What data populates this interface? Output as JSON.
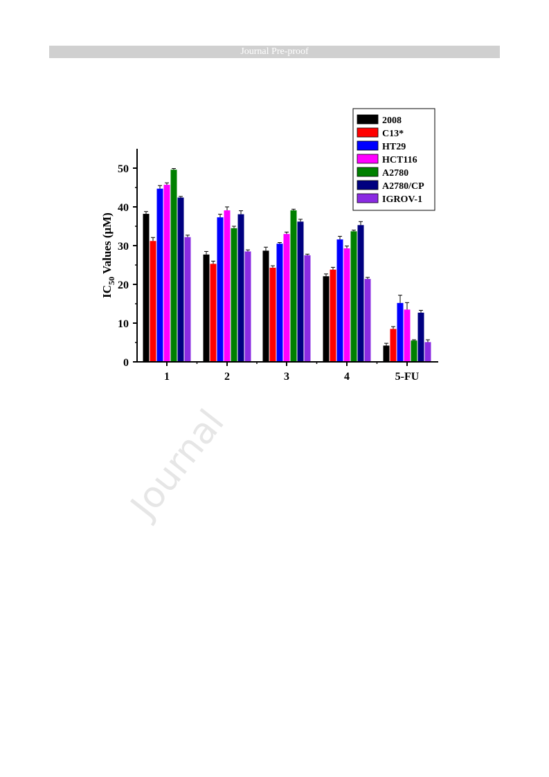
{
  "banner": {
    "text": "Journal Pre-proof"
  },
  "watermark": {
    "text": "Journal"
  },
  "chart_data": {
    "type": "bar",
    "title": "",
    "xlabel": "",
    "ylabel_main": "IC",
    "ylabel_sub": "50",
    "ylabel_rest": " Values (μM)",
    "ylim": [
      0,
      55
    ],
    "yticks": [
      0,
      10,
      20,
      30,
      40,
      50
    ],
    "categories": [
      "1",
      "2",
      "3",
      "4",
      "5-FU"
    ],
    "legend_position": "top-right",
    "series": [
      {
        "name": "2008",
        "color": "#000000",
        "values": [
          38.2,
          27.7,
          28.7,
          22.1,
          4.2
        ],
        "errors": [
          0.6,
          0.8,
          0.9,
          0.6,
          0.6
        ]
      },
      {
        "name": "C13*",
        "color": "#ff0000",
        "values": [
          31.2,
          25.3,
          24.3,
          23.8,
          8.5
        ],
        "errors": [
          0.9,
          0.7,
          0.5,
          0.6,
          0.6
        ]
      },
      {
        "name": "HT29",
        "color": "#0000ff",
        "values": [
          44.7,
          37.3,
          30.5,
          31.6,
          15.2
        ],
        "errors": [
          0.8,
          0.8,
          0.3,
          0.8,
          2.0
        ]
      },
      {
        "name": "HCT116",
        "color": "#ff00ff",
        "values": [
          45.7,
          39.1,
          33.0,
          29.3,
          13.5
        ],
        "errors": [
          0.5,
          0.9,
          0.5,
          0.6,
          1.8
        ]
      },
      {
        "name": "A2780",
        "color": "#008000",
        "values": [
          49.6,
          34.5,
          39.1,
          33.7,
          5.5
        ],
        "errors": [
          0.3,
          0.5,
          0.3,
          0.3,
          0.2
        ]
      },
      {
        "name": "A2780/CP",
        "color": "#000080",
        "values": [
          42.4,
          38.1,
          36.2,
          35.3,
          12.7
        ],
        "errors": [
          0.3,
          0.9,
          0.6,
          0.9,
          0.6
        ]
      },
      {
        "name": "IGROV-1",
        "color": "#8a2be2",
        "values": [
          32.2,
          28.5,
          27.5,
          21.4,
          5.1
        ],
        "errors": [
          0.5,
          0.4,
          0.3,
          0.4,
          0.6
        ]
      }
    ]
  }
}
